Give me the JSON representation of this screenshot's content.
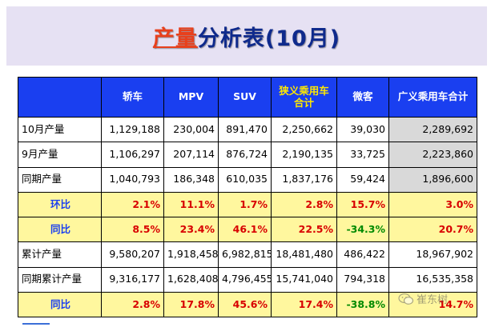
{
  "title": {
    "highlight": "产量",
    "rest": "分析表(10月)"
  },
  "headers": [
    "",
    "轿车",
    "MPV",
    "SUV",
    "狭义乘用车合计",
    "微客",
    "广义乘用车合计"
  ],
  "rows": [
    {
      "label": "10月产量",
      "values": [
        "1,129,188",
        "230,004",
        "891,470",
        "2,250,662",
        "39,030",
        "2,289,692"
      ],
      "kind": "num"
    },
    {
      "label": "9月产量",
      "values": [
        "1,106,297",
        "207,114",
        "876,724",
        "2,190,135",
        "33,725",
        "2,223,860"
      ],
      "kind": "num"
    },
    {
      "label": "同期产量",
      "values": [
        "1,040,793",
        "186,348",
        "610,035",
        "1,837,176",
        "59,424",
        "1,896,600"
      ],
      "kind": "num"
    },
    {
      "label": "环比",
      "values": [
        "2.1%",
        "11.1%",
        "1.7%",
        "2.8%",
        "15.7%",
        "3.0%"
      ],
      "kind": "pct"
    },
    {
      "label": "同比",
      "values": [
        "8.5%",
        "23.4%",
        "46.1%",
        "22.5%",
        "-34.3%",
        "20.7%"
      ],
      "kind": "pct"
    },
    {
      "label": "累计产量",
      "values": [
        "9,580,207",
        "1,918,458",
        "6,982,815",
        "18,481,480",
        "486,422",
        "18,967,902"
      ],
      "kind": "num"
    },
    {
      "label": "同期累计产量",
      "values": [
        "9,316,177",
        "1,628,408",
        "4,796,455",
        "15,741,040",
        "794,318",
        "16,535,358"
      ],
      "kind": "num"
    },
    {
      "label": "同比",
      "values": [
        "2.8%",
        "17.8%",
        "45.6%",
        "17.4%",
        "-38.8%",
        "14.7%"
      ],
      "kind": "pct"
    }
  ],
  "watermark": {
    "text": "崔东树",
    "icon": "wechat-icon"
  },
  "colors": {
    "header_bg": "#1a3ff0",
    "pct_bg": "#fff79e",
    "positive": "#d80000",
    "negative": "#008a00",
    "title": "#0f2a8c",
    "title_highlight": "#e8401c"
  }
}
